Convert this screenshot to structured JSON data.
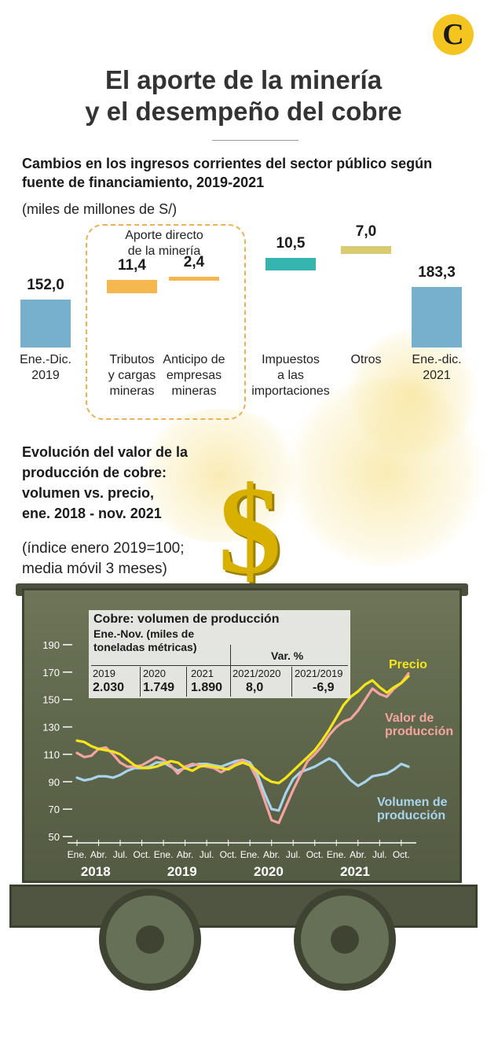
{
  "logo": {
    "letter": "C"
  },
  "title": {
    "line1": "El aporte de la minería",
    "line2": "y el desempeño del cobre"
  },
  "section1": {
    "subtitle_line1": "Cambios en los ingresos corrientes del sector público según",
    "subtitle_line2": "fuente de financiamiento, 2019-2021",
    "unit": "(miles de millones de S/)",
    "group_label_line1": "Aporte directo",
    "group_label_line2": "de la minería"
  },
  "section2": {
    "subtitle_line1": "Evolución del valor de la",
    "subtitle_line2": "producción de cobre:",
    "subtitle_line3": "volumen vs. precio,",
    "subtitle_line4": "ene. 2018 - nov. 2021",
    "note_line1": "(índice enero 2019=100;",
    "note_line2": "media móvil 3 meses)"
  },
  "infobox": {
    "title": "Cobre: volumen de producción",
    "sub_line1": "Ene.-Nov. (miles de",
    "sub_line2": "toneladas métricas)",
    "var_header": "Var. %",
    "years": [
      {
        "year": "2019",
        "value": "2.030"
      },
      {
        "year": "2020",
        "value": "1.749"
      },
      {
        "year": "2021",
        "value": "1.890"
      }
    ],
    "vars": [
      {
        "label": "2021/2020",
        "value": "8,0"
      },
      {
        "label": "2021/2019",
        "value": "-6,9"
      }
    ]
  },
  "colors": {
    "base_bar": "#77b0cc",
    "mining_bar": "#f5b84f",
    "imports_bar": "#36b5b0",
    "others_bar": "#d9cb72",
    "precio": "#f5e51a",
    "valor": "#f4a5a0",
    "volumen": "#a8d4ee"
  },
  "chart_data": [
    {
      "type": "bar",
      "subtype": "waterfall",
      "title": "Cambios en los ingresos corrientes del sector público según fuente de financiamiento, 2019-2021",
      "unit": "(miles de millones de S/)",
      "bars": [
        {
          "label_line1": "Ene.-Dic.",
          "label_line2": "2019",
          "label_line3": "",
          "value": 152.0,
          "value_label": "152,0",
          "kind": "total",
          "color": "#77b0cc"
        },
        {
          "label_line1": "Tributos",
          "label_line2": "y cargas",
          "label_line3": "mineras",
          "value": 11.4,
          "value_label": "11,4",
          "kind": "step",
          "color": "#f5b84f"
        },
        {
          "label_line1": "Anticipo de",
          "label_line2": "empresas",
          "label_line3": "mineras",
          "value": 2.4,
          "value_label": "2,4",
          "kind": "step",
          "color": "#f5b84f"
        },
        {
          "label_line1": "Impuestos",
          "label_line2": "a las",
          "label_line3": "importaciones",
          "value": 10.5,
          "value_label": "10,5",
          "kind": "step",
          "color": "#36b5b0"
        },
        {
          "label_line1": "Otros",
          "label_line2": "",
          "label_line3": "",
          "value": 7.0,
          "value_label": "7,0",
          "kind": "step",
          "color": "#d9cb72"
        },
        {
          "label_line1": "Ene.-dic.",
          "label_line2": "2021",
          "label_line3": "",
          "value": 183.3,
          "value_label": "183,3",
          "kind": "total",
          "color": "#77b0cc"
        }
      ]
    },
    {
      "type": "line",
      "title": "Evolución del valor de la producción de cobre: volumen vs. precio, ene. 2018 - nov. 2021",
      "ylim": [
        50,
        190
      ],
      "yticks": [
        50,
        70,
        90,
        110,
        130,
        150,
        170,
        190
      ],
      "xlim": [
        0,
        46
      ],
      "xtick_labels": [
        {
          "pos": 0,
          "label": "Ene."
        },
        {
          "pos": 3,
          "label": "Abr."
        },
        {
          "pos": 6,
          "label": "Jul."
        },
        {
          "pos": 9,
          "label": "Oct."
        },
        {
          "pos": 12,
          "label": "Ene."
        },
        {
          "pos": 15,
          "label": "Abr."
        },
        {
          "pos": 18,
          "label": "Jul."
        },
        {
          "pos": 21,
          "label": "Oct."
        },
        {
          "pos": 24,
          "label": "Ene."
        },
        {
          "pos": 27,
          "label": "Abr."
        },
        {
          "pos": 30,
          "label": "Jul."
        },
        {
          "pos": 33,
          "label": "Oct."
        },
        {
          "pos": 36,
          "label": "Ene."
        },
        {
          "pos": 39,
          "label": "Abr."
        },
        {
          "pos": 42,
          "label": "Jul."
        },
        {
          "pos": 45,
          "label": "Oct."
        }
      ],
      "year_labels": [
        {
          "pos": 1.5,
          "label": "2018"
        },
        {
          "pos": 13.5,
          "label": "2019"
        },
        {
          "pos": 25.5,
          "label": "2020"
        },
        {
          "pos": 37.5,
          "label": "2021"
        }
      ],
      "series": [
        {
          "name": "Precio",
          "color": "#f5e51a",
          "values": [
            120,
            119,
            116,
            114,
            113,
            112,
            110,
            106,
            102,
            100,
            100,
            101,
            103,
            105,
            104,
            100,
            98,
            101,
            102,
            101,
            100,
            99,
            102,
            104,
            102,
            98,
            93,
            90,
            89,
            93,
            98,
            103,
            108,
            113,
            120,
            128,
            137,
            146,
            152,
            156,
            161,
            164,
            159,
            155,
            159,
            162,
            167
          ]
        },
        {
          "name": "Valor de producción",
          "color": "#f4a5a0",
          "values": [
            111,
            108,
            109,
            114,
            115,
            110,
            104,
            101,
            101,
            102,
            105,
            108,
            106,
            102,
            96,
            101,
            103,
            102,
            101,
            100,
            97,
            100,
            103,
            106,
            102,
            92,
            77,
            62,
            60,
            72,
            84,
            95,
            105,
            110,
            116,
            124,
            130,
            134,
            136,
            142,
            150,
            158,
            154,
            152,
            158,
            162,
            169
          ]
        },
        {
          "name": "Volumen de producción",
          "color": "#a8d4ee",
          "values": [
            93,
            91,
            92,
            94,
            94,
            93,
            95,
            98,
            100,
            100,
            101,
            104,
            104,
            101,
            98,
            100,
            102,
            103,
            103,
            102,
            101,
            103,
            105,
            106,
            104,
            96,
            82,
            70,
            69,
            82,
            92,
            97,
            99,
            101,
            104,
            107,
            104,
            97,
            91,
            87,
            90,
            94,
            95,
            96,
            99,
            103,
            101
          ]
        }
      ],
      "legend": [
        {
          "label_line1": "Precio",
          "label_line2": "",
          "color": "#f5e51a"
        },
        {
          "label_line1": "Valor de",
          "label_line2": "producción",
          "color": "#f4a5a0"
        },
        {
          "label_line1": "Volumen de",
          "label_line2": "producción",
          "color": "#a8d4ee"
        }
      ]
    }
  ]
}
